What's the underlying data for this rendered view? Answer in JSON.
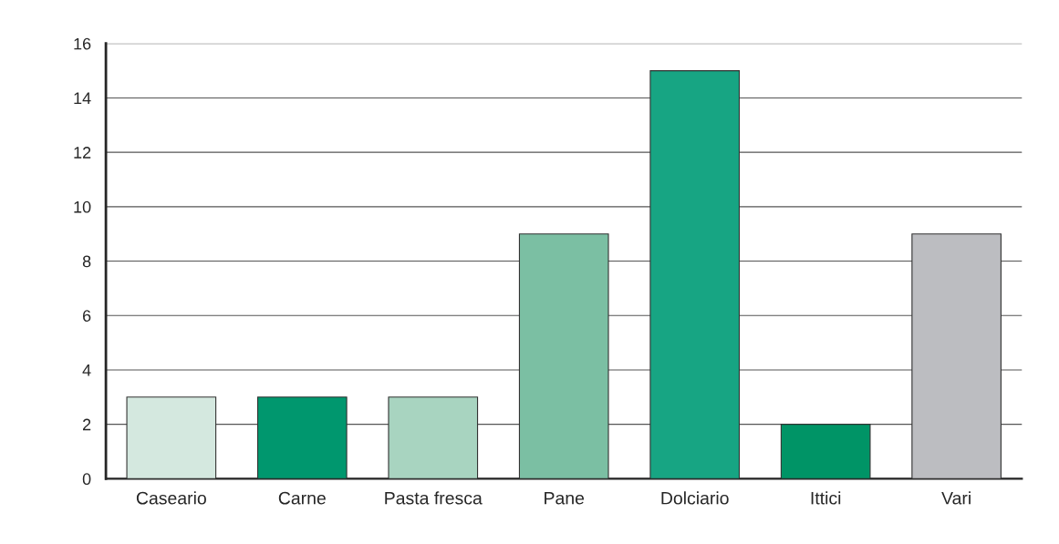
{
  "chart_data": {
    "type": "bar",
    "categories": [
      "Caseario",
      "Carne",
      "Pasta fresca",
      "Pane",
      "Dolciario",
      "Ittici",
      "Vari"
    ],
    "values": [
      3,
      3,
      3,
      9,
      15,
      2,
      9
    ],
    "colors": [
      "#d4e8df",
      "#00976e",
      "#a8d4c0",
      "#7bbfa3",
      "#17a583",
      "#009466",
      "#bcbdc1"
    ],
    "ylim": [
      0,
      16
    ],
    "yticks": [
      0,
      2,
      4,
      6,
      8,
      10,
      12,
      14,
      16
    ],
    "grid": "y",
    "legend": false
  }
}
